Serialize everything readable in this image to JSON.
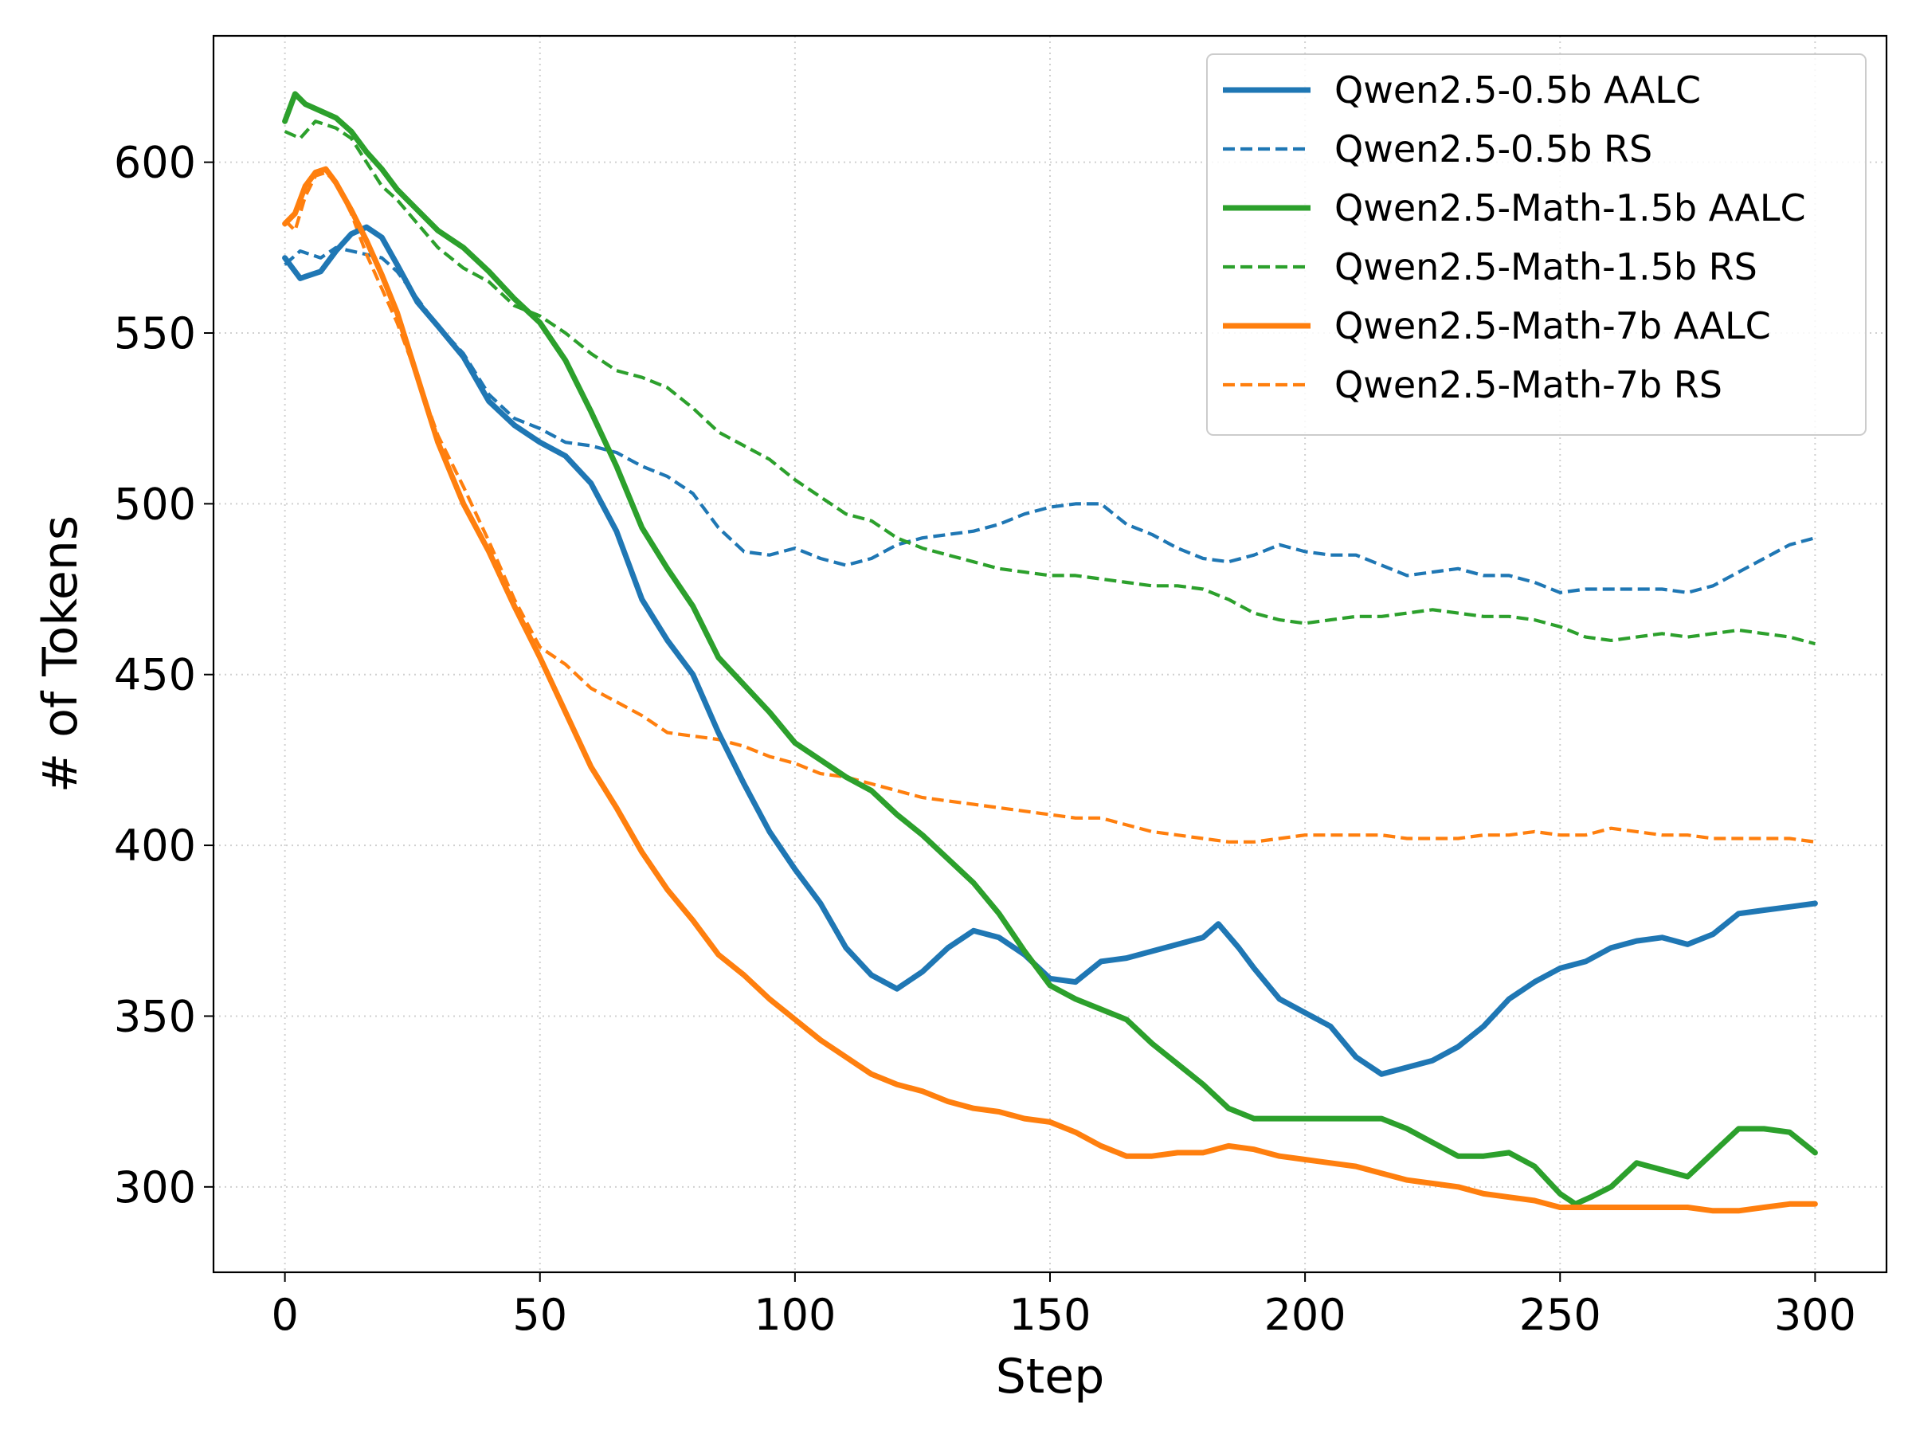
{
  "chart_data": {
    "type": "line",
    "title": "",
    "xlabel": "Step",
    "ylabel": "# of Tokens",
    "xlim": [
      -14,
      314
    ],
    "ylim": [
      275,
      637
    ],
    "xticks": [
      0,
      50,
      100,
      150,
      200,
      250,
      300
    ],
    "yticks": [
      300,
      350,
      400,
      450,
      500,
      550,
      600
    ],
    "grid": true,
    "legend_position": "top-right",
    "series": [
      {
        "name": "Qwen2.5-0.5b AALC",
        "color": "#1f77b4",
        "style": "solid",
        "x": [
          0,
          3,
          7,
          10,
          13,
          16,
          19,
          22,
          26,
          30,
          35,
          40,
          45,
          50,
          55,
          60,
          65,
          70,
          75,
          80,
          85,
          90,
          95,
          100,
          105,
          110,
          115,
          120,
          125,
          130,
          135,
          140,
          145,
          150,
          155,
          160,
          165,
          170,
          175,
          180,
          183,
          187,
          190,
          195,
          200,
          205,
          210,
          215,
          220,
          225,
          230,
          235,
          240,
          245,
          250,
          255,
          260,
          265,
          270,
          275,
          280,
          285,
          290,
          295,
          300
        ],
        "y": [
          572,
          566,
          568,
          574,
          579,
          581,
          578,
          570,
          559,
          552,
          543,
          530,
          523,
          518,
          514,
          506,
          492,
          472,
          460,
          450,
          433,
          418,
          404,
          393,
          383,
          370,
          362,
          358,
          363,
          370,
          375,
          373,
          368,
          361,
          360,
          366,
          367,
          369,
          371,
          373,
          377,
          370,
          364,
          355,
          351,
          347,
          338,
          333,
          335,
          337,
          341,
          347,
          355,
          360,
          364,
          366,
          370,
          372,
          373,
          371,
          374,
          380,
          381,
          382,
          383
        ]
      },
      {
        "name": "Qwen2.5-0.5b RS",
        "color": "#1f77b4",
        "style": "dashed",
        "x": [
          0,
          3,
          7,
          10,
          13,
          16,
          19,
          22,
          26,
          30,
          35,
          40,
          45,
          50,
          55,
          60,
          65,
          70,
          75,
          80,
          85,
          90,
          95,
          100,
          105,
          110,
          115,
          120,
          125,
          130,
          135,
          140,
          145,
          150,
          155,
          160,
          165,
          170,
          175,
          180,
          185,
          190,
          195,
          200,
          205,
          210,
          215,
          220,
          225,
          230,
          235,
          240,
          245,
          250,
          255,
          260,
          265,
          270,
          275,
          280,
          285,
          290,
          295,
          300
        ],
        "y": [
          570,
          574,
          572,
          575,
          574,
          573,
          572,
          568,
          560,
          552,
          544,
          532,
          525,
          522,
          518,
          517,
          515,
          511,
          508,
          503,
          493,
          486,
          485,
          487,
          484,
          482,
          484,
          488,
          490,
          491,
          492,
          494,
          497,
          499,
          500,
          500,
          494,
          491,
          487,
          484,
          483,
          485,
          488,
          486,
          485,
          485,
          482,
          479,
          480,
          481,
          479,
          479,
          477,
          474,
          475,
          475,
          475,
          475,
          474,
          476,
          480,
          484,
          488,
          490
        ]
      },
      {
        "name": "Qwen2.5-Math-1.5b AALC",
        "color": "#2ca02c",
        "style": "solid",
        "x": [
          0,
          2,
          4,
          7,
          10,
          13,
          16,
          19,
          22,
          26,
          30,
          35,
          40,
          45,
          50,
          55,
          60,
          65,
          70,
          75,
          80,
          85,
          90,
          95,
          100,
          105,
          110,
          115,
          120,
          125,
          130,
          135,
          140,
          145,
          150,
          155,
          160,
          165,
          170,
          175,
          180,
          185,
          190,
          195,
          200,
          205,
          210,
          215,
          220,
          225,
          230,
          235,
          240,
          245,
          250,
          253,
          256,
          260,
          265,
          270,
          275,
          280,
          285,
          290,
          295,
          300
        ],
        "y": [
          612,
          620,
          617,
          615,
          613,
          609,
          603,
          598,
          592,
          586,
          580,
          575,
          568,
          560,
          553,
          542,
          527,
          511,
          493,
          481,
          470,
          455,
          447,
          439,
          430,
          425,
          420,
          416,
          409,
          403,
          396,
          389,
          380,
          369,
          359,
          355,
          352,
          349,
          342,
          336,
          330,
          323,
          320,
          320,
          320,
          320,
          320,
          320,
          317,
          313,
          309,
          309,
          310,
          306,
          298,
          295,
          297,
          300,
          307,
          305,
          303,
          310,
          317,
          317,
          316,
          310
        ]
      },
      {
        "name": "Qwen2.5-Math-1.5b RS",
        "color": "#2ca02c",
        "style": "dashed",
        "x": [
          0,
          3,
          6,
          10,
          13,
          16,
          19,
          22,
          26,
          30,
          35,
          40,
          45,
          50,
          55,
          60,
          65,
          70,
          75,
          80,
          85,
          90,
          95,
          100,
          105,
          110,
          115,
          120,
          125,
          130,
          135,
          140,
          145,
          150,
          155,
          160,
          165,
          170,
          175,
          180,
          185,
          190,
          195,
          200,
          205,
          210,
          215,
          220,
          225,
          230,
          235,
          240,
          245,
          250,
          255,
          260,
          265,
          270,
          275,
          280,
          285,
          290,
          295,
          300
        ],
        "y": [
          609,
          607,
          612,
          610,
          607,
          600,
          593,
          589,
          582,
          575,
          569,
          565,
          558,
          555,
          550,
          544,
          539,
          537,
          534,
          528,
          521,
          517,
          513,
          507,
          502,
          497,
          495,
          490,
          487,
          485,
          483,
          481,
          480,
          479,
          479,
          478,
          477,
          476,
          476,
          475,
          472,
          468,
          466,
          465,
          466,
          467,
          467,
          468,
          469,
          468,
          467,
          467,
          466,
          464,
          461,
          460,
          461,
          462,
          461,
          462,
          463,
          462,
          461,
          459
        ]
      },
      {
        "name": "Qwen2.5-Math-7b AALC",
        "color": "#ff7f0e",
        "style": "solid",
        "x": [
          0,
          2,
          4,
          6,
          8,
          10,
          13,
          16,
          19,
          22,
          26,
          30,
          35,
          40,
          45,
          50,
          55,
          60,
          65,
          70,
          75,
          80,
          85,
          90,
          95,
          100,
          105,
          110,
          115,
          120,
          125,
          130,
          135,
          140,
          145,
          150,
          155,
          160,
          165,
          170,
          175,
          180,
          185,
          190,
          195,
          200,
          205,
          210,
          215,
          220,
          225,
          230,
          235,
          240,
          245,
          250,
          255,
          260,
          265,
          270,
          275,
          280,
          285,
          290,
          295,
          300
        ],
        "y": [
          582,
          585,
          593,
          597,
          598,
          594,
          586,
          577,
          567,
          556,
          537,
          518,
          500,
          486,
          470,
          455,
          439,
          423,
          411,
          398,
          387,
          378,
          368,
          362,
          355,
          349,
          343,
          338,
          333,
          330,
          328,
          325,
          323,
          322,
          320,
          319,
          316,
          312,
          309,
          309,
          310,
          310,
          312,
          311,
          309,
          308,
          307,
          306,
          304,
          302,
          301,
          300,
          298,
          297,
          296,
          294,
          294,
          294,
          294,
          294,
          294,
          293,
          293,
          294,
          295,
          295
        ]
      },
      {
        "name": "Qwen2.5-Math-7b RS",
        "color": "#ff7f0e",
        "style": "dashed",
        "x": [
          0,
          2,
          4,
          6,
          8,
          10,
          13,
          16,
          19,
          22,
          26,
          30,
          35,
          40,
          45,
          50,
          55,
          60,
          65,
          70,
          75,
          80,
          85,
          90,
          95,
          100,
          105,
          110,
          115,
          120,
          125,
          130,
          135,
          140,
          145,
          150,
          155,
          160,
          165,
          170,
          175,
          180,
          185,
          190,
          195,
          200,
          205,
          210,
          215,
          220,
          225,
          230,
          235,
          240,
          245,
          250,
          255,
          260,
          265,
          270,
          275,
          280,
          285,
          290,
          295,
          300
        ],
        "y": [
          583,
          580,
          590,
          596,
          597,
          594,
          585,
          573,
          563,
          553,
          537,
          520,
          505,
          489,
          472,
          458,
          453,
          446,
          442,
          438,
          433,
          432,
          431,
          429,
          426,
          424,
          421,
          420,
          418,
          416,
          414,
          413,
          412,
          411,
          410,
          409,
          408,
          408,
          406,
          404,
          403,
          402,
          401,
          401,
          402,
          403,
          403,
          403,
          403,
          402,
          402,
          402,
          403,
          403,
          404,
          403,
          403,
          405,
          404,
          403,
          403,
          402,
          402,
          402,
          402,
          401
        ]
      }
    ]
  }
}
